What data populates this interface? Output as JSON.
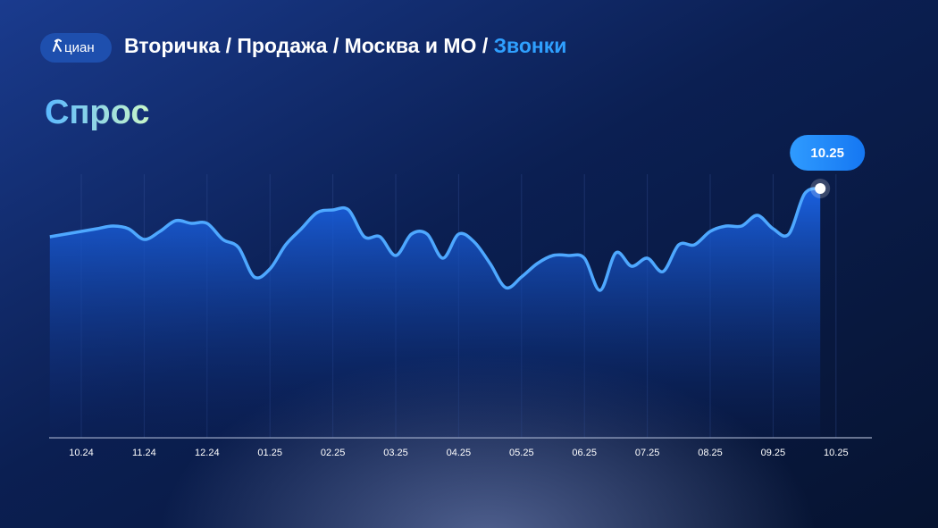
{
  "header": {
    "logo": "циан",
    "breadcrumb": [
      "Вторичка",
      "Продажа",
      "Москва и МО",
      "Звонки"
    ],
    "separator": "/"
  },
  "chart_data": {
    "type": "area",
    "title": "Спрос",
    "annotation": "10.25",
    "categories": [
      null,
      null,
      "10.24",
      null,
      null,
      null,
      "11.24",
      null,
      null,
      null,
      "12.24",
      null,
      null,
      null,
      "01.25",
      null,
      null,
      null,
      "02.25",
      null,
      null,
      null,
      "03.25",
      null,
      null,
      null,
      "04.25",
      null,
      null,
      null,
      "05.25",
      null,
      null,
      null,
      "06.25",
      null,
      null,
      null,
      "07.25",
      null,
      null,
      null,
      "08.25",
      null,
      null,
      null,
      "09.25",
      null,
      null,
      null,
      "10.25"
    ],
    "values": [
      75,
      76,
      77,
      78,
      79,
      78,
      74,
      77,
      81,
      80,
      80,
      74,
      71,
      60,
      63,
      72,
      78,
      84,
      85,
      85,
      75,
      75,
      68,
      76,
      76,
      67,
      76,
      73,
      65,
      56,
      60,
      65,
      68,
      68,
      67,
      55,
      69,
      64,
      67,
      62,
      72,
      72,
      77,
      79,
      79,
      83,
      78,
      76,
      91,
      93,
      null
    ],
    "color": "#4ea8ff",
    "ylim": [
      0,
      100
    ]
  }
}
